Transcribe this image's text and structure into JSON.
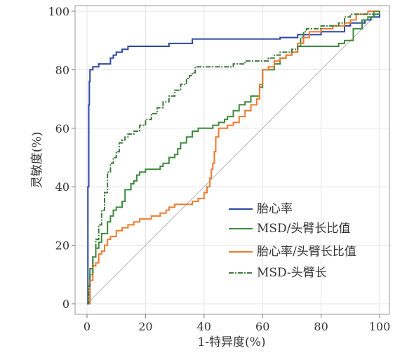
{
  "chart_data": {
    "type": "line",
    "title": "",
    "xlabel": "1-特异度(%)",
    "ylabel": "灵敏度(%)",
    "xlim": [
      0,
      100
    ],
    "ylim": [
      0,
      100
    ],
    "xticks": [
      "0",
      "20",
      "40",
      "60",
      "80",
      "100"
    ],
    "yticks": [
      "0",
      "20",
      "40",
      "60",
      "80",
      "100"
    ],
    "grid": true,
    "legend_position": "bottom-right",
    "diagonal_reference": true,
    "series": [
      {
        "name": "胎心率",
        "color": "#2b47a3",
        "style": "solid",
        "points": [
          [
            0,
            0
          ],
          [
            0.3,
            40
          ],
          [
            0.6,
            68
          ],
          [
            0.8,
            76
          ],
          [
            1,
            80
          ],
          [
            2,
            81
          ],
          [
            4,
            82
          ],
          [
            6,
            82
          ],
          [
            8,
            84
          ],
          [
            9,
            85
          ],
          [
            10,
            86
          ],
          [
            12,
            87
          ],
          [
            14,
            88
          ],
          [
            20,
            88
          ],
          [
            26,
            88
          ],
          [
            28,
            89
          ],
          [
            32,
            89
          ],
          [
            36,
            90.5
          ],
          [
            50,
            90.5
          ],
          [
            62,
            90.5
          ],
          [
            66,
            91
          ],
          [
            72,
            92
          ],
          [
            80,
            93
          ],
          [
            85,
            93
          ],
          [
            88,
            95
          ],
          [
            90,
            96
          ],
          [
            95,
            97
          ],
          [
            97,
            98
          ],
          [
            100,
            100
          ]
        ]
      },
      {
        "name": "MSD/头臂长比值",
        "color": "#3d8a3d",
        "style": "solid",
        "points": [
          [
            0,
            0
          ],
          [
            1,
            12
          ],
          [
            2,
            16
          ],
          [
            3,
            19
          ],
          [
            4,
            21
          ],
          [
            5,
            24
          ],
          [
            7,
            28
          ],
          [
            8,
            30
          ],
          [
            9,
            32
          ],
          [
            10,
            33
          ],
          [
            12,
            35
          ],
          [
            13,
            39
          ],
          [
            15,
            41
          ],
          [
            16,
            42
          ],
          [
            17,
            44
          ],
          [
            18,
            45
          ],
          [
            20,
            46
          ],
          [
            25,
            47
          ],
          [
            26,
            48
          ],
          [
            28,
            50
          ],
          [
            30,
            51
          ],
          [
            31,
            53
          ],
          [
            32,
            55
          ],
          [
            34,
            57
          ],
          [
            36,
            59
          ],
          [
            38,
            60
          ],
          [
            42,
            60
          ],
          [
            43,
            61
          ],
          [
            45,
            62
          ],
          [
            47,
            63
          ],
          [
            48,
            64
          ],
          [
            50,
            66
          ],
          [
            52,
            68
          ],
          [
            54,
            69
          ],
          [
            56,
            71
          ],
          [
            58,
            71
          ],
          [
            59,
            74
          ],
          [
            60,
            80
          ],
          [
            62,
            80
          ],
          [
            64,
            82
          ],
          [
            66,
            84
          ],
          [
            68,
            85
          ],
          [
            70,
            86
          ],
          [
            72,
            88
          ],
          [
            82,
            88
          ],
          [
            86,
            89
          ],
          [
            88,
            90
          ],
          [
            91,
            94
          ],
          [
            94,
            97
          ],
          [
            96,
            98
          ],
          [
            98,
            99
          ],
          [
            100,
            100
          ]
        ]
      },
      {
        "name": "胎心率/头臂长比值",
        "color": "#f07a2c",
        "style": "solid",
        "points": [
          [
            0,
            0
          ],
          [
            1,
            8
          ],
          [
            2,
            13
          ],
          [
            3,
            14
          ],
          [
            4,
            17
          ],
          [
            5,
            18
          ],
          [
            6,
            20
          ],
          [
            7,
            22
          ],
          [
            8,
            23
          ],
          [
            10,
            25
          ],
          [
            12,
            26
          ],
          [
            14,
            27
          ],
          [
            16,
            28
          ],
          [
            18,
            29
          ],
          [
            20,
            29
          ],
          [
            22,
            30
          ],
          [
            25,
            31
          ],
          [
            27,
            32
          ],
          [
            28,
            33
          ],
          [
            30,
            34
          ],
          [
            35,
            34
          ],
          [
            36,
            35
          ],
          [
            38,
            36
          ],
          [
            40,
            38
          ],
          [
            41,
            40
          ],
          [
            42,
            43
          ],
          [
            42.5,
            46
          ],
          [
            43,
            48
          ],
          [
            43.5,
            52
          ],
          [
            44,
            57
          ],
          [
            45,
            60
          ],
          [
            48,
            61
          ],
          [
            50,
            62
          ],
          [
            52,
            64
          ],
          [
            54,
            66
          ],
          [
            56,
            68
          ],
          [
            58,
            70
          ],
          [
            59,
            75
          ],
          [
            60,
            80
          ],
          [
            62,
            81
          ],
          [
            64,
            83
          ],
          [
            66,
            84
          ],
          [
            68,
            85
          ],
          [
            70,
            86
          ],
          [
            72,
            89
          ],
          [
            74,
            91
          ],
          [
            76,
            93
          ],
          [
            80,
            94
          ],
          [
            84,
            95
          ],
          [
            88,
            96
          ],
          [
            90,
            97
          ],
          [
            92,
            99
          ],
          [
            96,
            100
          ],
          [
            100,
            100
          ]
        ]
      },
      {
        "name": "MSD-头臂长",
        "color": "#3f7a3f",
        "style": "dashdot",
        "points": [
          [
            0,
            0
          ],
          [
            0.5,
            6
          ],
          [
            1,
            10
          ],
          [
            2,
            16
          ],
          [
            3,
            22
          ],
          [
            4,
            27
          ],
          [
            5,
            32
          ],
          [
            6,
            38
          ],
          [
            7,
            45
          ],
          [
            8,
            48
          ],
          [
            9,
            50
          ],
          [
            10,
            52
          ],
          [
            11,
            55
          ],
          [
            12,
            56
          ],
          [
            13,
            57
          ],
          [
            14,
            58
          ],
          [
            16,
            59
          ],
          [
            18,
            61
          ],
          [
            20,
            63
          ],
          [
            22,
            65
          ],
          [
            24,
            67
          ],
          [
            26,
            69
          ],
          [
            28,
            71
          ],
          [
            30,
            73
          ],
          [
            32,
            75
          ],
          [
            34,
            77
          ],
          [
            35,
            78
          ],
          [
            36,
            79
          ],
          [
            37,
            81
          ],
          [
            40,
            81
          ],
          [
            45,
            81
          ],
          [
            48,
            81
          ],
          [
            50,
            82
          ],
          [
            54,
            83
          ],
          [
            60,
            83
          ],
          [
            62,
            84
          ],
          [
            64,
            85
          ],
          [
            66,
            86
          ],
          [
            68,
            86
          ],
          [
            70,
            87
          ],
          [
            72,
            88
          ],
          [
            73,
            91
          ],
          [
            74,
            93
          ],
          [
            75,
            94
          ],
          [
            80,
            95
          ],
          [
            84,
            95
          ],
          [
            86,
            96
          ],
          [
            88,
            98
          ],
          [
            90,
            99
          ],
          [
            94,
            99
          ],
          [
            96,
            99
          ],
          [
            98,
            100
          ],
          [
            100,
            100
          ]
        ]
      }
    ]
  }
}
